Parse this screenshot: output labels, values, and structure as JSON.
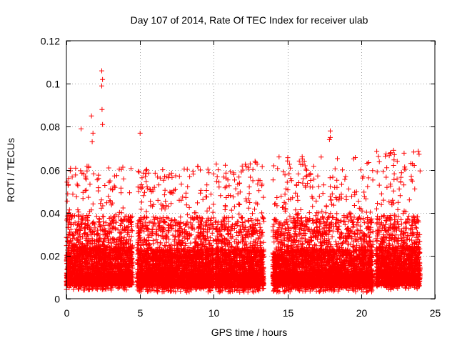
{
  "chart_data": {
    "type": "scatter",
    "title": "Day 107 of 2014, Rate Of TEC Index for receiver ulab",
    "xlabel": "GPS time / hours",
    "ylabel": "ROTI / TECUs",
    "xlim": [
      0,
      25
    ],
    "ylim": [
      0,
      0.12
    ],
    "x_ticks": [
      0,
      5,
      10,
      15,
      20,
      25
    ],
    "x_tick_labels": [
      "0",
      "5",
      "10",
      "15",
      "20",
      "25"
    ],
    "y_ticks": [
      0,
      0.02,
      0.04,
      0.06,
      0.08,
      0.1,
      0.12
    ],
    "y_tick_labels": [
      "0",
      "0.02",
      "0.04",
      "0.06",
      "0.08",
      "0.1",
      "0.12"
    ],
    "grid": true,
    "marker": "+",
    "color": "#ff0000",
    "series": [
      {
        "name": "ROTI",
        "segments": [
          {
            "x_start": 0.0,
            "x_end": 4.5,
            "y_min": 0.004,
            "y_max": 0.062
          },
          {
            "x_start": 4.8,
            "x_end": 10.0,
            "y_min": 0.003,
            "y_max": 0.062
          },
          {
            "x_start": 10.1,
            "x_end": 13.4,
            "y_min": 0.003,
            "y_max": 0.064
          },
          {
            "x_start": 14.0,
            "x_end": 20.8,
            "y_min": 0.003,
            "y_max": 0.066
          },
          {
            "x_start": 21.0,
            "x_end": 24.0,
            "y_min": 0.004,
            "y_max": 0.069
          }
        ],
        "peaks": [
          {
            "x": 2.4,
            "y": 0.106
          },
          {
            "x": 2.45,
            "y": 0.102
          },
          {
            "x": 2.4,
            "y": 0.099
          },
          {
            "x": 2.42,
            "y": 0.088
          },
          {
            "x": 2.45,
            "y": 0.081
          },
          {
            "x": 1.7,
            "y": 0.085
          },
          {
            "x": 1.0,
            "y": 0.079
          },
          {
            "x": 1.8,
            "y": 0.077
          },
          {
            "x": 1.75,
            "y": 0.073
          },
          {
            "x": 5.0,
            "y": 0.077
          },
          {
            "x": 17.9,
            "y": 0.078
          },
          {
            "x": 17.85,
            "y": 0.074
          },
          {
            "x": 17.9,
            "y": 0.075
          },
          {
            "x": 22.2,
            "y": 0.069
          },
          {
            "x": 22.25,
            "y": 0.067
          },
          {
            "x": 22.2,
            "y": 0.062
          },
          {
            "x": 20.4,
            "y": 0.063
          },
          {
            "x": 16.0,
            "y": 0.066
          },
          {
            "x": 12.8,
            "y": 0.064
          },
          {
            "x": 23.6,
            "y": 0.062
          },
          {
            "x": 13.3,
            "y": 0.038
          },
          {
            "x": 13.4,
            "y": 0.036
          }
        ]
      }
    ]
  }
}
